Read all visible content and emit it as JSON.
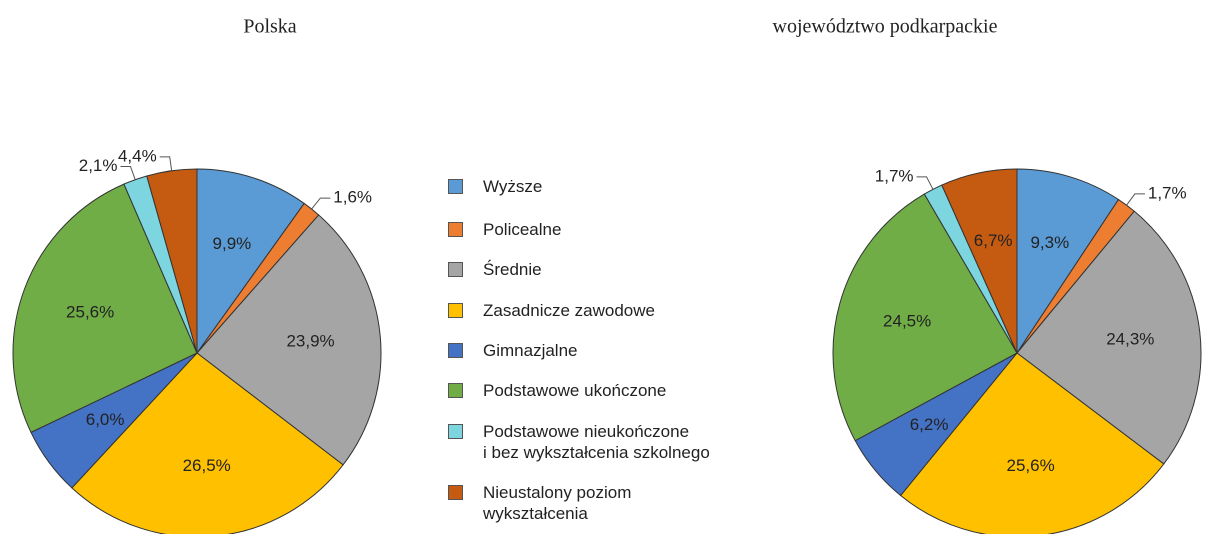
{
  "chart_data": [
    {
      "type": "pie",
      "title": "Polska",
      "values": [
        9.9,
        1.6,
        23.9,
        26.5,
        6.0,
        25.6,
        2.1,
        4.4
      ],
      "value_labels": [
        "9,9%",
        "1,6%",
        "23,9%",
        "26,5%",
        "6,0%",
        "25,6%",
        "2,1%",
        "4,4%"
      ]
    },
    {
      "type": "pie",
      "title": "województwo podkarpackie",
      "values": [
        9.3,
        1.7,
        24.3,
        25.6,
        6.2,
        24.5,
        1.7,
        6.7
      ],
      "value_labels": [
        "9,3%",
        "1,7%",
        "24,3%",
        "25,6%",
        "6,2%",
        "24,5%",
        "1,7%",
        "6,7%"
      ]
    }
  ],
  "legend": {
    "items": [
      "Wyższe",
      "Policealne",
      "Średnie",
      "Zasadnicze zawodowe",
      "Gimnazjalne",
      "Podstawowe ukończone",
      "Podstawowe nieukończone\ni bez wykształcenia szkolnego",
      "Nieustalony poziom\nwykształcenia"
    ],
    "colors": [
      "#5b9bd5",
      "#ed7d31",
      "#a5a5a5",
      "#ffc000",
      "#4472c4",
      "#70ad47",
      "#7dd6df",
      "#c55a11"
    ]
  }
}
